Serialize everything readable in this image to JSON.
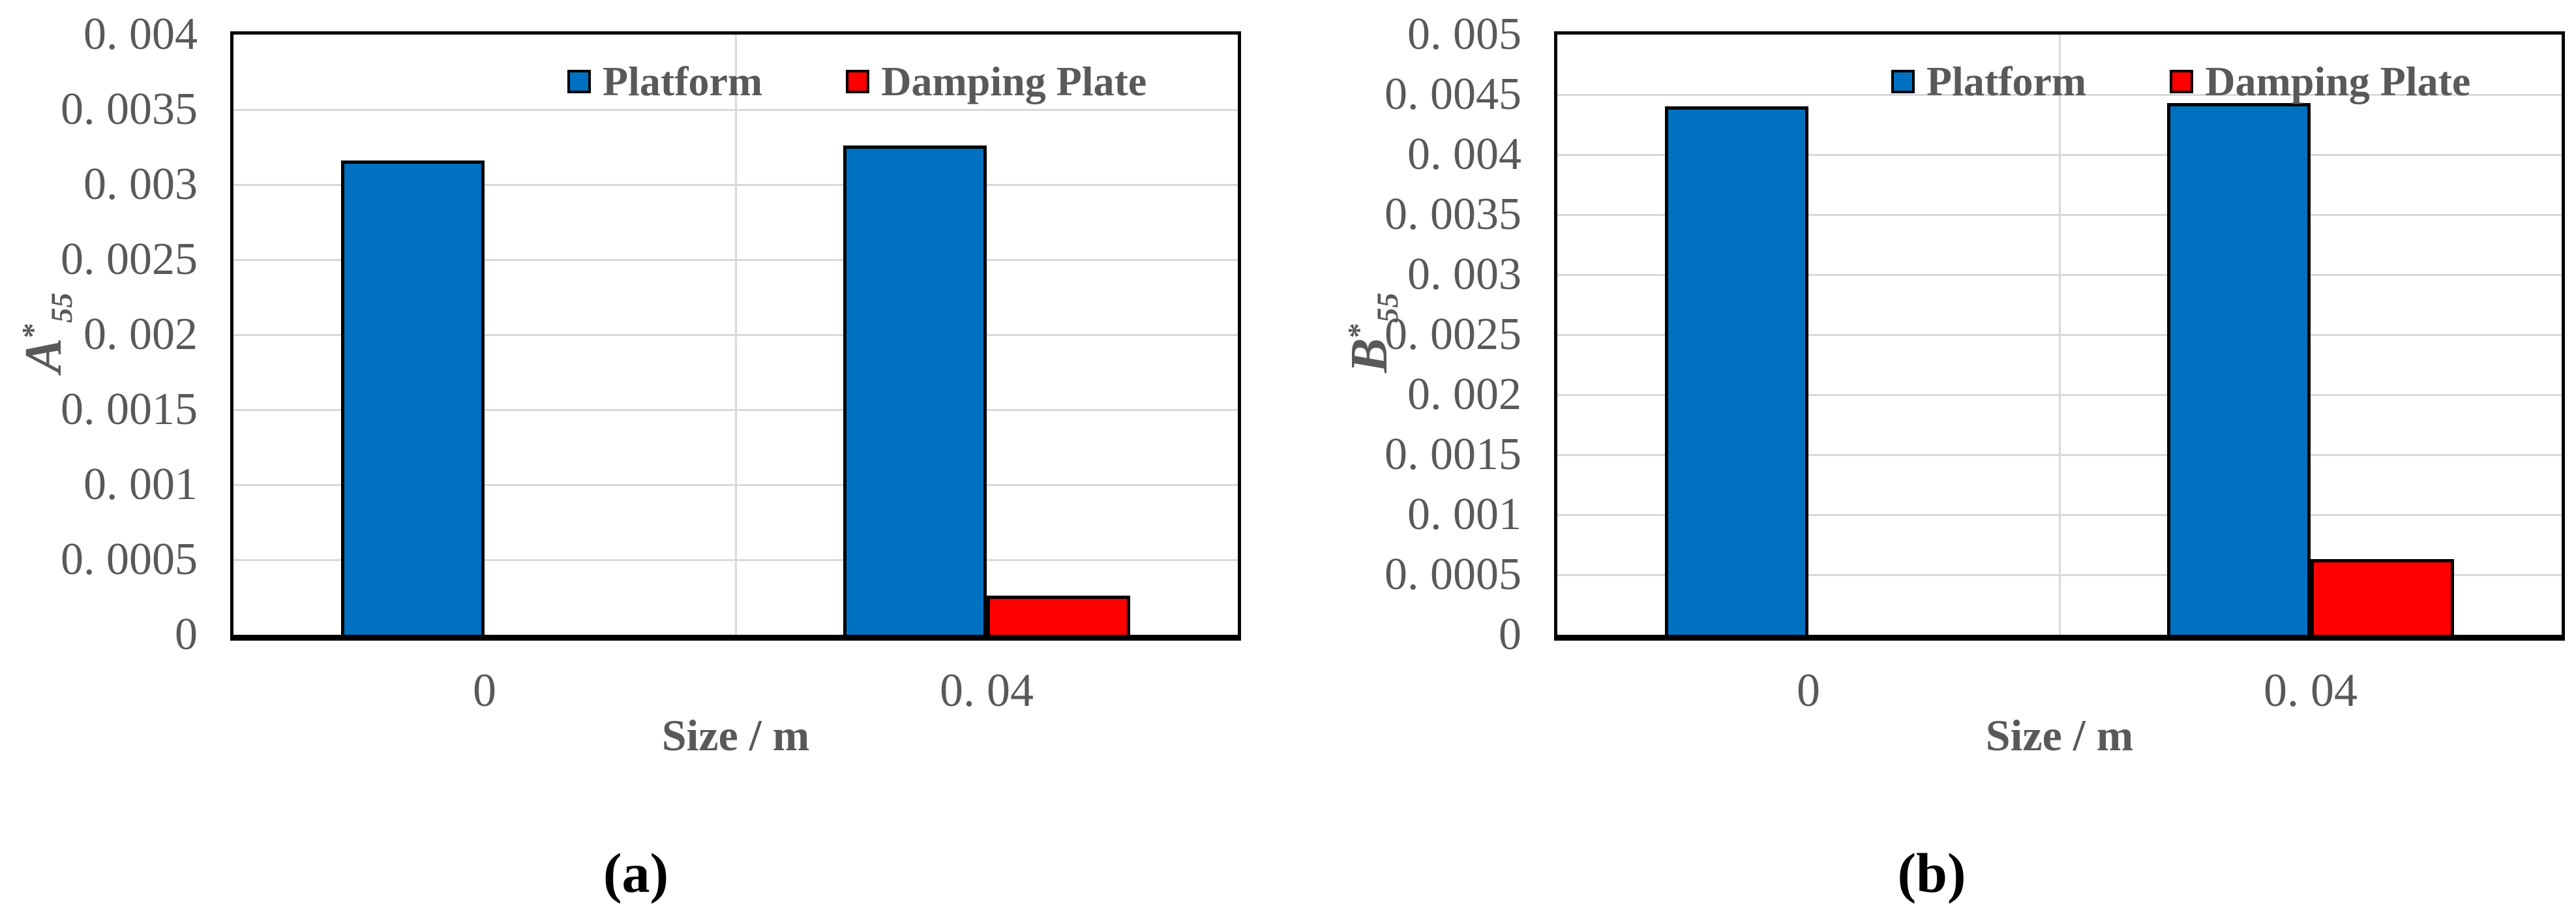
{
  "figure": {
    "background": "#ffffff",
    "text_color": "#595959",
    "grid_color": "#d9d9d9",
    "axis_color": "#000000"
  },
  "legend": {
    "items": [
      {
        "label": "Platform",
        "color": "#0070C0"
      },
      {
        "label": "Damping Plate",
        "color": "#FF0000"
      }
    ]
  },
  "chart_data": [
    {
      "type": "bar",
      "caption": "(a)",
      "categories": [
        "0",
        "0. 04"
      ],
      "series": [
        {
          "name": "Platform",
          "color": "#0070C0",
          "values": [
            0.00316,
            0.00326
          ]
        },
        {
          "name": "Damping Plate",
          "color": "#FF0000",
          "values": [
            0,
            0.00026
          ]
        }
      ],
      "xlabel": "Size / m",
      "ylabel": "A*55",
      "ylabel_parts": {
        "base": "A",
        "sup": "*",
        "sub": "55"
      },
      "ylim": [
        0,
        0.004
      ],
      "ytick_step": 0.0005,
      "ytick_labels": [
        "0. 004",
        "0. 0035",
        "0. 003",
        "0. 0025",
        "0. 002",
        "0. 0015",
        "0. 001",
        "0. 0005",
        "0"
      ],
      "grid": "horizontal major + one vertical category boundary",
      "legend_position": "inside-top"
    },
    {
      "type": "bar",
      "caption": "(b)",
      "categories": [
        "0",
        "0. 04"
      ],
      "series": [
        {
          "name": "Platform",
          "color": "#0070C0",
          "values": [
            0.0044,
            0.00443
          ]
        },
        {
          "name": "Damping Plate",
          "color": "#FF0000",
          "values": [
            0,
            0.00063
          ]
        }
      ],
      "xlabel": "Size / m",
      "ylabel": "B*55",
      "ylabel_parts": {
        "base": "B",
        "sup": "*",
        "sub": "55"
      },
      "ylim": [
        0,
        0.005
      ],
      "ytick_step": 0.0005,
      "ytick_labels": [
        "0. 005",
        "0. 0045",
        "0. 004",
        "0. 0035",
        "0. 003",
        "0. 0025",
        "0. 002",
        "0. 0015",
        "0. 001",
        "0. 0005",
        "0"
      ],
      "grid": "horizontal major + one vertical category boundary",
      "legend_position": "inside-top"
    }
  ]
}
